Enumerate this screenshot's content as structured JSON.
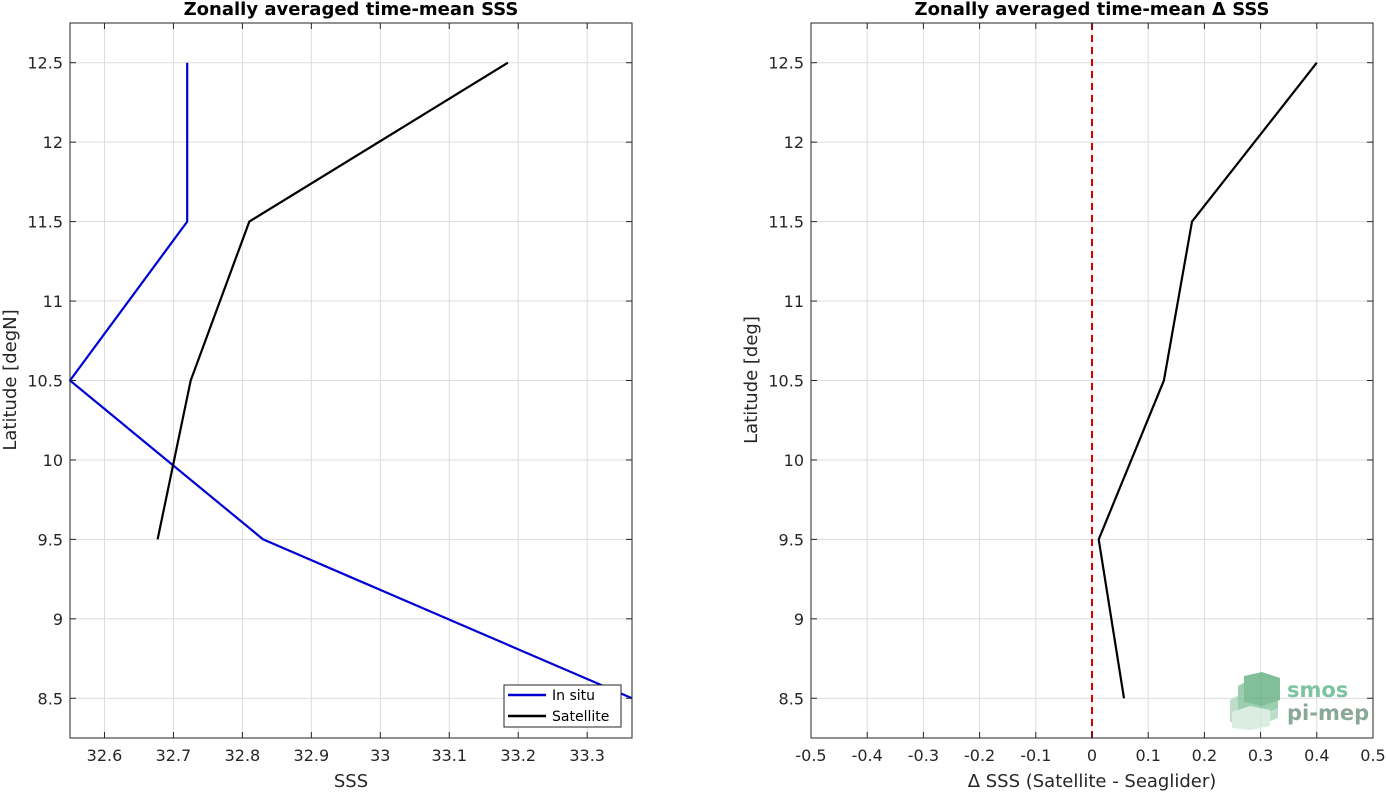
{
  "chart_data": [
    {
      "type": "line",
      "title": "Zonally averaged time-mean SSS",
      "xlabel": "SSS",
      "ylabel": "Latitude [degN]",
      "xlim": [
        32.55,
        33.365
      ],
      "ylim": [
        8.25,
        12.75
      ],
      "xticks": [
        "32.6",
        "32.7",
        "32.8",
        "32.9",
        "33",
        "33.1",
        "33.2",
        "33.3"
      ],
      "xtick_values": [
        32.6,
        32.7,
        32.8,
        32.9,
        33.0,
        33.1,
        33.2,
        33.3
      ],
      "yticks": [
        "8.5",
        "9",
        "9.5",
        "10",
        "10.5",
        "11",
        "11.5",
        "12",
        "12.5"
      ],
      "ytick_values": [
        8.5,
        9,
        9.5,
        10,
        10.5,
        11,
        11.5,
        12,
        12.5
      ],
      "grid": true,
      "legend_position": "bottom-right",
      "series": [
        {
          "name": "In situ",
          "color": "#0000d4",
          "points": [
            [
              33.365,
              8.5
            ],
            [
              32.83,
              9.5
            ],
            [
              32.55,
              10.5
            ],
            [
              32.72,
              11.5
            ],
            [
              32.72,
              12.5
            ]
          ]
        },
        {
          "name": "Satellite",
          "color": "#000000",
          "points": [
            [
              32.677,
              9.5
            ],
            [
              32.725,
              10.5
            ],
            [
              32.81,
              11.5
            ],
            [
              33.185,
              12.5
            ]
          ]
        }
      ]
    },
    {
      "type": "line",
      "title": "Zonally averaged time-mean Δ SSS",
      "xlabel": "Δ SSS (Satellite - Seaglider)",
      "ylabel": "Latitude [deg]",
      "xlim": [
        -0.5,
        0.5
      ],
      "ylim": [
        8.25,
        12.75
      ],
      "xticks": [
        "-0.5",
        "-0.4",
        "-0.3",
        "-0.2",
        "-0.1",
        "0",
        "0.1",
        "0.2",
        "0.3",
        "0.4",
        "0.5"
      ],
      "xtick_values": [
        -0.5,
        -0.4,
        -0.3,
        -0.2,
        -0.1,
        0,
        0.1,
        0.2,
        0.3,
        0.4,
        0.5
      ],
      "yticks": [
        "8.5",
        "9",
        "9.5",
        "10",
        "10.5",
        "11",
        "11.5",
        "12",
        "12.5"
      ],
      "ytick_values": [
        8.5,
        9,
        9.5,
        10,
        10.5,
        11,
        11.5,
        12,
        12.5
      ],
      "grid": true,
      "reference_line": {
        "x": 0,
        "color": "#d40000",
        "style": "dashed"
      },
      "series": [
        {
          "color": "#000000",
          "points": [
            [
              0.057,
              8.5
            ],
            [
              0.012,
              9.5
            ],
            [
              0.128,
              10.5
            ],
            [
              0.178,
              11.5
            ],
            [
              0.4,
              12.5
            ]
          ]
        }
      ]
    }
  ],
  "logo": {
    "line1": "smos",
    "line2": "pi-mep"
  }
}
